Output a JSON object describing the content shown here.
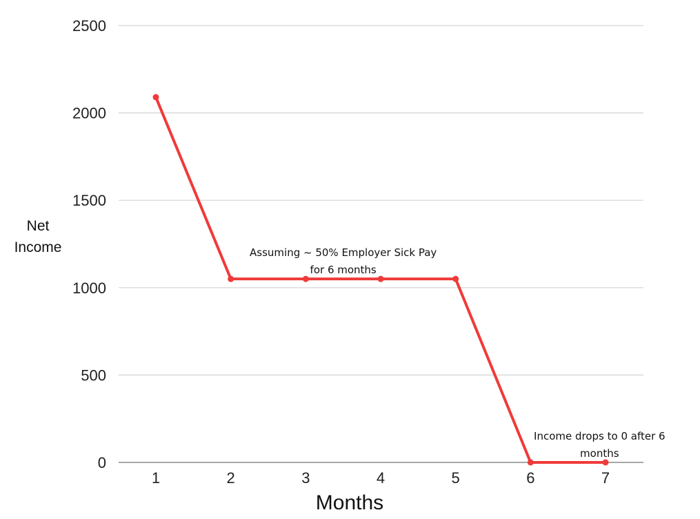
{
  "chart_data": {
    "type": "line",
    "xlabel": "Months",
    "ylabel_lines": [
      "Net",
      "Income"
    ],
    "x": [
      1,
      2,
      3,
      4,
      5,
      6,
      7
    ],
    "series": [
      {
        "values": [
          2090,
          1050,
          1050,
          1050,
          1050,
          0,
          0
        ],
        "color": "#f03a3a"
      }
    ],
    "yticks": [
      0,
      500,
      1000,
      1500,
      2000,
      2500
    ],
    "ylim": [
      0,
      2500
    ],
    "xlim": [
      0.5,
      7.5
    ],
    "grid": true,
    "annotations": [
      {
        "lines": [
          "Assuming ~ 50% Employer Sick Pay",
          "for 6 months"
        ],
        "x": 3.5,
        "y": 1180
      },
      {
        "lines": [
          "Income drops to 0 after 6",
          "months"
        ],
        "x": 6.92,
        "y": 130
      }
    ]
  }
}
